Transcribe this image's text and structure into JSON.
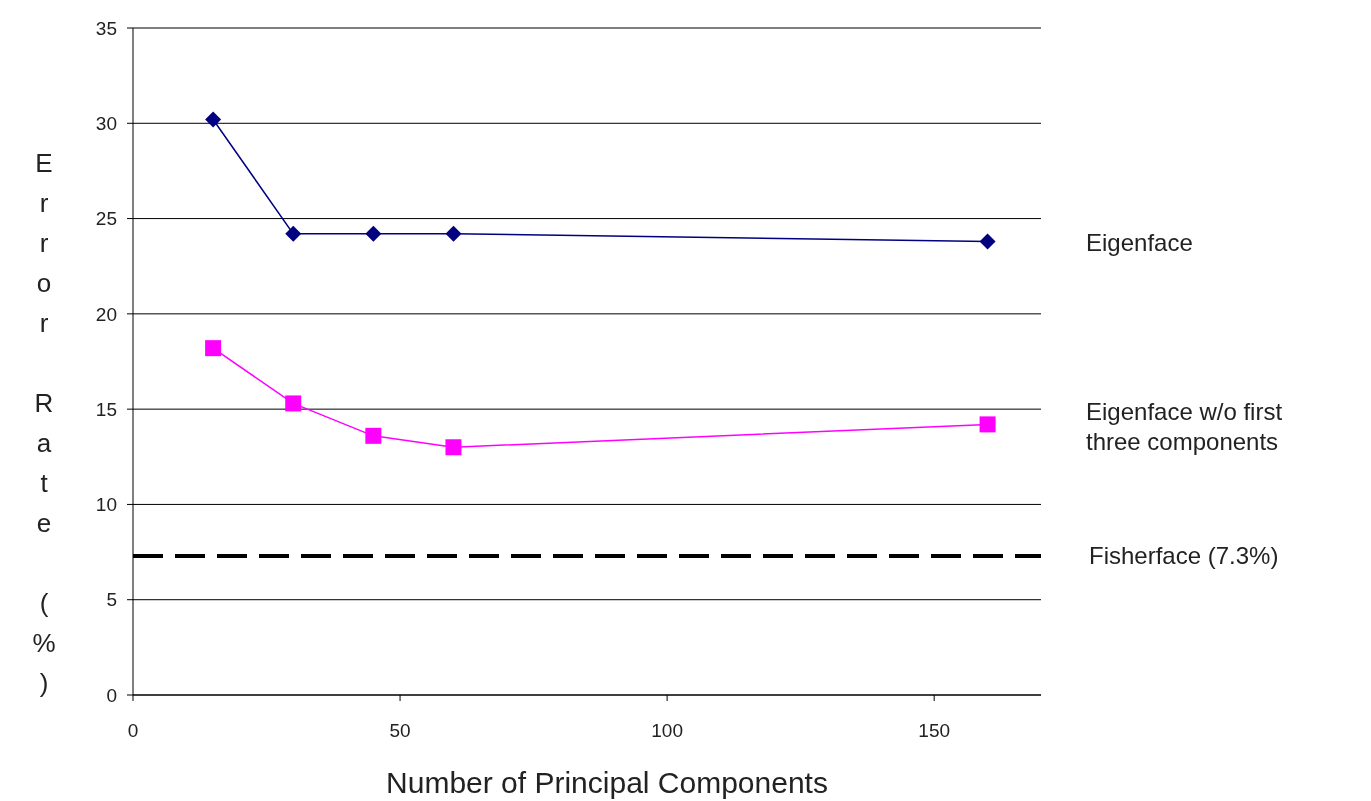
{
  "chart_data": {
    "type": "line",
    "xlabel": "Number of Principal Components",
    "ylabel": "Error Rate (%)",
    "xlim": [
      0,
      170
    ],
    "xticks": [
      0,
      50,
      100,
      150
    ],
    "ylim": [
      0,
      35
    ],
    "yticks": [
      0,
      5,
      10,
      15,
      20,
      25,
      30,
      35
    ],
    "grid": "y",
    "legend": "right",
    "series": [
      {
        "name": "Eigenface",
        "color": "#000080",
        "marker": "diamond",
        "x": [
          15,
          30,
          45,
          60,
          160
        ],
        "values": [
          30.2,
          24.2,
          24.2,
          24.2,
          23.8
        ]
      },
      {
        "name": "Eigenface w/o first three components",
        "color": "#ff00ff",
        "marker": "square",
        "x": [
          15,
          30,
          45,
          60,
          160
        ],
        "values": [
          18.2,
          15.3,
          13.6,
          13.0,
          14.2
        ]
      }
    ],
    "ref_lines": [
      {
        "axis": "y",
        "value": 7.3,
        "label": "Fisherface (7.3%)",
        "color": "#000000",
        "line_style": "dashed"
      }
    ]
  }
}
